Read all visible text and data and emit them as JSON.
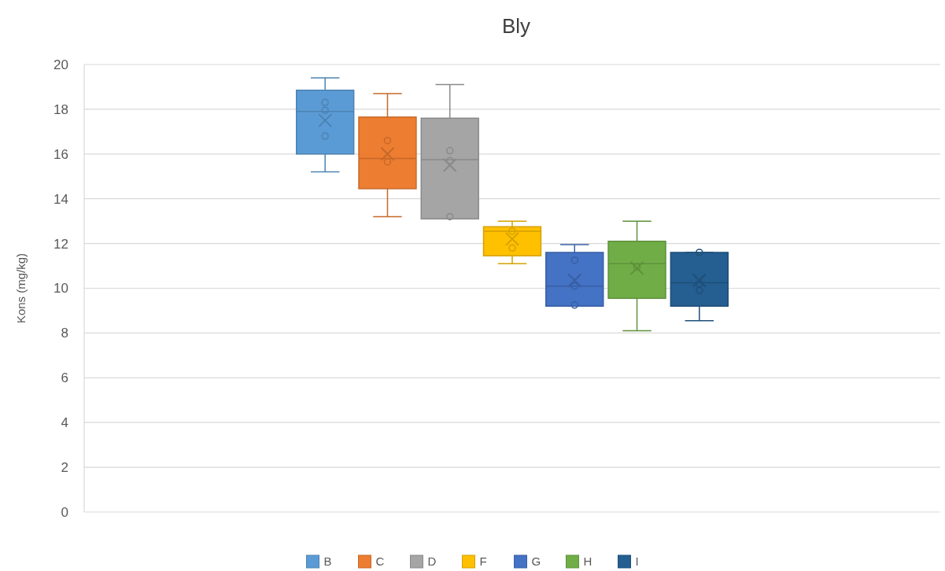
{
  "chart_data": {
    "type": "box",
    "title": "Bly",
    "ylabel": "Kons (mg/kg)",
    "categories": [
      null
    ],
    "ylim": [
      0,
      20
    ],
    "yticks": [
      0,
      2,
      4,
      6,
      8,
      10,
      12,
      14,
      16,
      18,
      20
    ],
    "grid": "y",
    "legend": "bottom",
    "series": [
      {
        "name": "B",
        "color": "#5b9bd5",
        "boxes": [
          {
            "low": 15.2,
            "q1": 16.0,
            "median": 17.9,
            "q3": 18.85,
            "high": 19.4,
            "mean": 17.5,
            "outliers": [
              18.3,
              17.95,
              16.8
            ]
          }
        ]
      },
      {
        "name": "C",
        "color": "#ed7d31",
        "boxes": [
          {
            "low": 13.2,
            "q1": 14.45,
            "median": 15.8,
            "q3": 17.65,
            "high": 18.7,
            "mean": 16.0,
            "outliers": [
              16.6,
              15.65
            ]
          }
        ]
      },
      {
        "name": "D",
        "color": "#a5a5a5",
        "boxes": [
          {
            "low": 13.1,
            "q1": 13.1,
            "median": 15.75,
            "q3": 17.6,
            "high": 19.1,
            "mean": 15.5,
            "outliers": [
              16.15,
              15.7,
              13.2
            ]
          }
        ]
      },
      {
        "name": "F",
        "color": "#ffc000",
        "boxes": [
          {
            "low": 11.1,
            "q1": 11.45,
            "median": 12.55,
            "q3": 12.75,
            "high": 13.0,
            "mean": 12.2,
            "outliers": [
              12.55,
              11.8
            ]
          }
        ]
      },
      {
        "name": "G",
        "color": "#4472c4",
        "boxes": [
          {
            "low": 9.2,
            "q1": 9.2,
            "median": 10.1,
            "q3": 11.6,
            "high": 11.95,
            "mean": 10.35,
            "outliers": [
              11.25,
              10.1,
              9.25
            ]
          }
        ]
      },
      {
        "name": "H",
        "color": "#70ad47",
        "boxes": [
          {
            "low": 8.1,
            "q1": 9.55,
            "median": 11.1,
            "q3": 12.1,
            "high": 13.0,
            "mean": 10.9,
            "outliers": [
              10.95
            ]
          }
        ]
      },
      {
        "name": "I",
        "color": "#255e91",
        "boxes": [
          {
            "low": 8.55,
            "q1": 9.2,
            "median": 10.25,
            "q3": 11.6,
            "high": 11.6,
            "mean": 10.35,
            "outliers": [
              11.6,
              10.2,
              9.9
            ]
          }
        ]
      }
    ]
  }
}
